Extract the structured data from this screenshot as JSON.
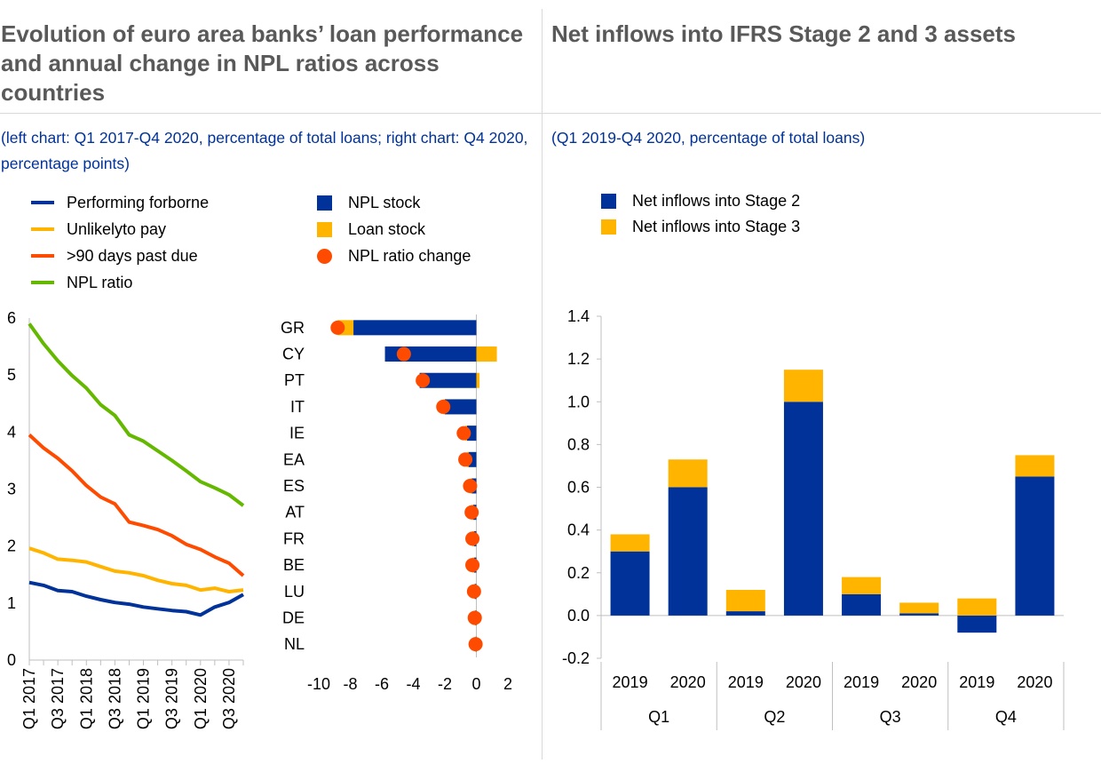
{
  "left_panel": {
    "title": "Evolution of euro area banks’ loan performance and annual change in NPL ratios across countries",
    "subtitle": "(left chart: Q1 2017-Q4 2020, percentage of total loans; right chart: Q4 2020, percentage points)"
  },
  "right_panel": {
    "title": "Net inflows into IFRS Stage 2 and 3 assets",
    "subtitle": "(Q1 2019-Q4 2020, percentage of total loans)"
  },
  "colors": {
    "blue": "#003299",
    "yellow": "#ffb400",
    "orange": "#ff4b00",
    "green": "#65b800"
  },
  "chart_data": [
    {
      "type": "line",
      "x": [
        "Q1 2017",
        "Q2 2017",
        "Q3 2017",
        "Q4 2017",
        "Q1 2018",
        "Q2 2018",
        "Q3 2018",
        "Q4 2018",
        "Q1 2019",
        "Q2 2019",
        "Q3 2019",
        "Q4 2019",
        "Q1 2020",
        "Q2 2020",
        "Q3 2020",
        "Q4 2020"
      ],
      "x_tick_labels": [
        "Q1 2017",
        "Q3 2017",
        "Q1 2018",
        "Q3 2018",
        "Q1 2019",
        "Q3 2019",
        "Q1 2020",
        "Q3 2020"
      ],
      "ylim": [
        0,
        6
      ],
      "y_ticks": [
        "0",
        "1",
        "2",
        "3",
        "4",
        "5",
        "6"
      ],
      "series": [
        {
          "name": "Performing forborne",
          "color": "#003299",
          "values": [
            1.36,
            1.31,
            1.22,
            1.2,
            1.12,
            1.06,
            1.01,
            0.98,
            0.93,
            0.9,
            0.87,
            0.85,
            0.79,
            0.93,
            1.01,
            1.15
          ]
        },
        {
          "name": "Unlikelyto pay",
          "color": "#ffb400",
          "values": [
            1.96,
            1.88,
            1.77,
            1.75,
            1.72,
            1.64,
            1.56,
            1.53,
            1.48,
            1.4,
            1.34,
            1.31,
            1.23,
            1.26,
            1.2,
            1.23
          ]
        },
        {
          "name": ">90 days past due",
          "color": "#ff4b00",
          "values": [
            3.95,
            3.72,
            3.54,
            3.32,
            3.06,
            2.86,
            2.74,
            2.42,
            2.36,
            2.29,
            2.18,
            2.03,
            1.94,
            1.81,
            1.7,
            1.48
          ]
        },
        {
          "name": "NPL ratio",
          "color": "#65b800",
          "values": [
            5.9,
            5.55,
            5.25,
            4.99,
            4.77,
            4.48,
            4.29,
            3.95,
            3.84,
            3.67,
            3.5,
            3.32,
            3.13,
            3.02,
            2.9,
            2.71
          ]
        }
      ]
    },
    {
      "type": "bar",
      "orientation": "horizontal",
      "categories": [
        "GR",
        "CY",
        "PT",
        "IT",
        "IE",
        "EA",
        "ES",
        "AT",
        "FR",
        "BE",
        "LU",
        "DE",
        "NL"
      ],
      "xlim": [
        -10,
        2
      ],
      "x_ticks": [
        "-10",
        "-8",
        "-6",
        "-4",
        "-2",
        "0",
        "2"
      ],
      "series": [
        {
          "name": "NPL stock",
          "color": "#003299",
          "values": [
            -7.8,
            -5.8,
            -3.6,
            -2.0,
            -0.6,
            -0.5,
            -0.3,
            -0.2,
            -0.15,
            -0.15,
            -0.1,
            -0.05,
            -0.05
          ]
        },
        {
          "name": "Loan stock",
          "color": "#ffb400",
          "values": [
            -1.0,
            1.3,
            0.2,
            -0.1,
            -0.1,
            -0.1,
            -0.1,
            -0.1,
            -0.1,
            -0.1,
            -0.05,
            -0.05,
            0.0
          ]
        },
        {
          "name": "NPL ratio change",
          "color": "#ff4b00",
          "marker": "dot",
          "values": [
            -8.8,
            -4.6,
            -3.4,
            -2.1,
            -0.8,
            -0.7,
            -0.4,
            -0.3,
            -0.25,
            -0.25,
            -0.15,
            -0.1,
            -0.05
          ]
        }
      ]
    },
    {
      "type": "bar",
      "stacked": true,
      "categories": [
        "2019",
        "2020",
        "2019",
        "2020",
        "2019",
        "2020",
        "2019",
        "2020"
      ],
      "groups": [
        "Q1",
        "Q2",
        "Q3",
        "Q4"
      ],
      "ylim": [
        -0.2,
        1.4
      ],
      "y_ticks": [
        "-0.2",
        "0.0",
        "0.2",
        "0.4",
        "0.6",
        "0.8",
        "1.0",
        "1.2",
        "1.4"
      ],
      "series": [
        {
          "name": "Net inflows into Stage 2",
          "color": "#003299",
          "values": [
            0.3,
            0.6,
            0.02,
            1.0,
            0.1,
            0.01,
            -0.08,
            0.65
          ]
        },
        {
          "name": "Net inflows into Stage 3",
          "color": "#ffb400",
          "values": [
            0.08,
            0.13,
            0.1,
            0.15,
            0.08,
            0.05,
            0.08,
            0.1
          ]
        }
      ]
    }
  ]
}
